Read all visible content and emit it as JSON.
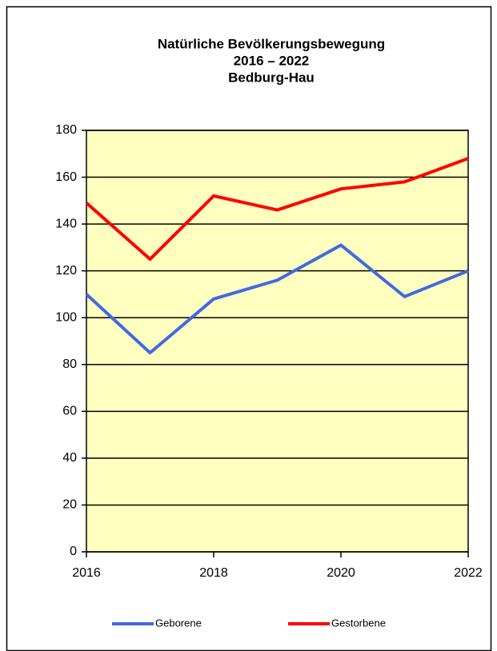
{
  "chart_data": {
    "type": "line",
    "title": [
      "Natürliche Bevölkerungsbewegung",
      "2016 – 2022",
      "Bedburg-Hau"
    ],
    "x": [
      2016,
      2017,
      2018,
      2019,
      2020,
      2021,
      2022
    ],
    "series": [
      {
        "name": "Geborene",
        "color": "#4169e1",
        "values": [
          110,
          85,
          108,
          116,
          131,
          109,
          120
        ]
      },
      {
        "name": "Gestorbene",
        "color": "#ff0000",
        "values": [
          149,
          125,
          152,
          146,
          155,
          158,
          168
        ]
      }
    ],
    "xlim": [
      2016,
      2022
    ],
    "xticks": [
      2016,
      2018,
      2020,
      2022
    ],
    "ylim": [
      0,
      180
    ],
    "yticks": [
      0,
      20,
      40,
      60,
      80,
      100,
      120,
      140,
      160,
      180
    ],
    "grid": true,
    "plot_background": "#ffffc0",
    "legend": "bottom"
  }
}
